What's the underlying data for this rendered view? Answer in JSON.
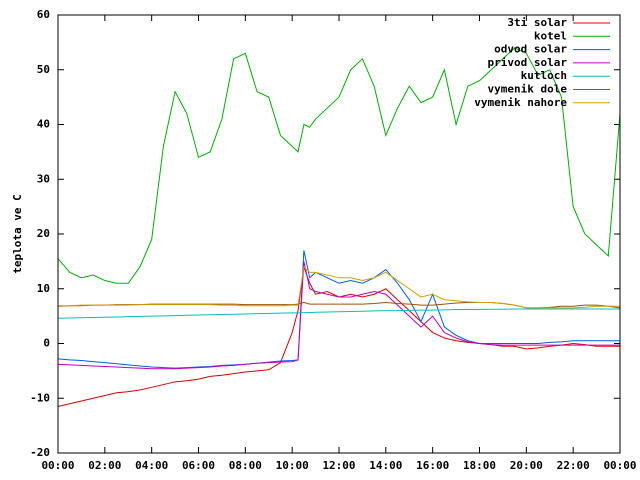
{
  "chart_data": {
    "type": "line",
    "ylabel": "teplota ve C",
    "x": [
      0,
      0.5,
      1,
      1.5,
      2,
      2.5,
      3,
      3.5,
      4,
      4.5,
      5,
      5.5,
      6,
      6.5,
      7,
      7.5,
      8,
      8.5,
      9,
      9.5,
      10,
      10.25,
      10.5,
      10.75,
      11,
      11.5,
      12,
      12.5,
      13,
      13.5,
      14,
      14.5,
      15,
      15.5,
      16,
      16.5,
      17,
      17.5,
      18,
      18.5,
      19,
      19.5,
      20,
      20.5,
      21,
      21.5,
      22,
      22.5,
      23,
      23.5,
      24
    ],
    "xlim": [
      0,
      24
    ],
    "xticks": [
      {
        "value": 0,
        "label": "00:00"
      },
      {
        "value": 2,
        "label": "02:00"
      },
      {
        "value": 4,
        "label": "04:00"
      },
      {
        "value": 6,
        "label": "06:00"
      },
      {
        "value": 8,
        "label": "08:00"
      },
      {
        "value": 10,
        "label": "10:00"
      },
      {
        "value": 12,
        "label": "12:00"
      },
      {
        "value": 14,
        "label": "14:00"
      },
      {
        "value": 16,
        "label": "16:00"
      },
      {
        "value": 18,
        "label": "18:00"
      },
      {
        "value": 20,
        "label": "20:00"
      },
      {
        "value": 22,
        "label": "22:00"
      },
      {
        "value": 24,
        "label": "00:00"
      }
    ],
    "ylim": [
      -20,
      60
    ],
    "yticks": [
      -20,
      -10,
      0,
      10,
      20,
      30,
      40,
      50,
      60
    ],
    "grid": false,
    "legend": "top-right",
    "series": [
      {
        "name": "3ti solar",
        "color": "#e00000",
        "values": [
          -11.5,
          -11,
          -10.5,
          -10,
          -9.5,
          -9,
          -8.8,
          -8.5,
          -8,
          -7.5,
          -7,
          -6.8,
          -6.5,
          -6,
          -5.8,
          -5.5,
          -5.2,
          -5,
          -4.8,
          -3.5,
          2,
          6,
          14,
          11,
          9,
          9.5,
          8.5,
          9,
          8.5,
          9,
          10,
          8,
          6,
          4,
          2,
          1,
          0.5,
          0.2,
          0,
          -0.2,
          -0.5,
          -0.5,
          -1,
          -0.8,
          -0.5,
          -0.3,
          0,
          -0.2,
          -0.5,
          -0.5,
          -0.5
        ]
      },
      {
        "name": "kotel",
        "color": "#00b000",
        "values": [
          15.5,
          13,
          12,
          12.5,
          11.5,
          11,
          11,
          14,
          19,
          36,
          46,
          42,
          34,
          35,
          41,
          52,
          53,
          46,
          45,
          38,
          36,
          35,
          40,
          39.5,
          41,
          43,
          45,
          50,
          52,
          47,
          38,
          43,
          47,
          44,
          45,
          50,
          40,
          47,
          48,
          50,
          52,
          54,
          53,
          49,
          50,
          45,
          25,
          20,
          18,
          16,
          42
        ]
      },
      {
        "name": "odvod solar",
        "color": "#0060e0",
        "values": [
          -2.8,
          -3,
          -3.1,
          -3.3,
          -3.5,
          -3.7,
          -3.9,
          -4.1,
          -4.3,
          -4.4,
          -4.5,
          -4.4,
          -4.3,
          -4.2,
          -4,
          -3.9,
          -3.8,
          -3.6,
          -3.4,
          -3.2,
          -3.1,
          -3,
          17,
          12,
          13,
          12,
          11,
          11.5,
          11,
          12,
          13.5,
          11,
          8,
          4,
          9,
          3,
          1.5,
          0.5,
          0,
          0,
          0,
          0,
          0,
          0,
          0.2,
          0.3,
          0.5,
          0.5,
          0.5,
          0.5,
          0.5
        ]
      },
      {
        "name": "privod solar",
        "color": "#c000c0",
        "values": [
          -3.8,
          -3.9,
          -4,
          -4.1,
          -4.2,
          -4.3,
          -4.4,
          -4.5,
          -4.6,
          -4.6,
          -4.6,
          -4.5,
          -4.4,
          -4.3,
          -4.1,
          -4,
          -3.8,
          -3.6,
          -3.5,
          -3.4,
          -3.3,
          -3,
          15,
          10,
          9.5,
          9,
          8.5,
          8.5,
          9,
          9.5,
          9,
          7,
          5,
          3,
          5,
          2,
          1,
          0.3,
          0,
          -0.2,
          -0.3,
          -0.3,
          -0.3,
          -0.3,
          -0.3,
          -0.3,
          -0.3,
          -0.3,
          -0.3,
          -0.3,
          -0.3
        ]
      },
      {
        "name": "kutloch",
        "color": "#00c0c0",
        "values": [
          4.6,
          4.65,
          4.7,
          4.75,
          4.8,
          4.85,
          4.9,
          4.95,
          5,
          5.05,
          5.1,
          5.15,
          5.2,
          5.25,
          5.3,
          5.35,
          5.4,
          5.45,
          5.5,
          5.55,
          5.6,
          5.6,
          5.65,
          5.65,
          5.7,
          5.75,
          5.8,
          5.85,
          5.9,
          5.95,
          6,
          6,
          6.05,
          6.1,
          6.1,
          6.15,
          6.2,
          6.2,
          6.2,
          6.25,
          6.25,
          6.3,
          6.3,
          6.3,
          6.3,
          6.3,
          6.3,
          6.3,
          6.3,
          6.3,
          6.3
        ]
      },
      {
        "name": "vymenik dole",
        "color": "#a05000",
        "values": [
          6.8,
          6.9,
          6.9,
          7,
          7,
          7.1,
          7.1,
          7.1,
          7.2,
          7.2,
          7.2,
          7.2,
          7.2,
          7.2,
          7.2,
          7.2,
          7.1,
          7.1,
          7.1,
          7.1,
          7.1,
          7.2,
          7.5,
          7.2,
          7.2,
          7.2,
          7.2,
          7.2,
          7.2,
          7.3,
          7.5,
          7.3,
          7.2,
          7,
          7,
          7.2,
          7.4,
          7.5,
          7.5,
          7.5,
          7.3,
          7,
          6.5,
          6.5,
          6.6,
          6.8,
          6.8,
          7,
          7,
          6.8,
          6.5
        ]
      },
      {
        "name": "vymenik nahore",
        "color": "#d0a000",
        "values": [
          6.9,
          6.9,
          7,
          7,
          7,
          7,
          7,
          7.1,
          7.1,
          7.1,
          7.1,
          7.1,
          7.1,
          7.1,
          7,
          7,
          6.9,
          6.9,
          6.9,
          6.9,
          7,
          7,
          14,
          13,
          13,
          12.5,
          12,
          12,
          11.5,
          12,
          13,
          11.5,
          10,
          8.5,
          9,
          8,
          7.8,
          7.6,
          7.5,
          7.5,
          7.3,
          7,
          6.5,
          6.5,
          6.5,
          6.5,
          6.5,
          6.6,
          6.8,
          6.8,
          6.8
        ]
      }
    ]
  }
}
